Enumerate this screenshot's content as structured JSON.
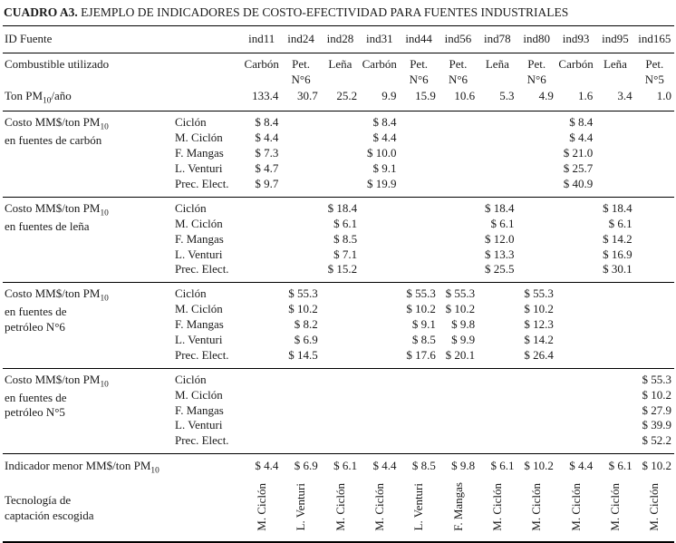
{
  "title": {
    "prefix": "CUADRO A3.",
    "text": "EJEMPLO DE INDICADORES DE COSTO-EFECTIVIDAD PARA FUENTES INDUSTRIALES"
  },
  "table": {
    "id_row_label": "ID Fuente",
    "source_ids": [
      "ind11",
      "ind24",
      "ind28",
      "ind31",
      "ind44",
      "ind56",
      "ind78",
      "ind80",
      "ind93",
      "ind95",
      "ind165"
    ],
    "fuel_row_label": "Combustible utilizado",
    "fuels": [
      [
        "Carbón"
      ],
      [
        "Pet.",
        "N°6"
      ],
      [
        "Leña"
      ],
      [
        "Carbón"
      ],
      [
        "Pet.",
        "N°6"
      ],
      [
        "Pet.",
        "N°6"
      ],
      [
        "Leña"
      ],
      [
        "Pet.",
        "N°6"
      ],
      [
        "Carbón"
      ],
      [
        "Leña"
      ],
      [
        "Pet.",
        "N°5"
      ]
    ],
    "emission_row_label": "Ton PM{10}/año",
    "emissions": [
      "133.4",
      "30.7",
      "25.2",
      "9.9",
      "15.9",
      "10.6",
      "5.3",
      "4.9",
      "1.6",
      "3.4",
      "1.0"
    ],
    "sections": [
      {
        "label_lines": [
          "Costo MM$/ton PM{10}",
          "en fuentes de carbón"
        ],
        "tech_rows": [
          {
            "tech": "Ciclón",
            "values": [
              "$ 8.4",
              "",
              "",
              "$ 8.4",
              "",
              "",
              "",
              "",
              "$ 8.4",
              "",
              ""
            ]
          },
          {
            "tech": "M. Ciclón",
            "values": [
              "$ 4.4",
              "",
              "",
              "$ 4.4",
              "",
              "",
              "",
              "",
              "$ 4.4",
              "",
              ""
            ]
          },
          {
            "tech": "F. Mangas",
            "values": [
              "$ 7.3",
              "",
              "",
              "$ 10.0",
              "",
              "",
              "",
              "",
              "$ 21.0",
              "",
              ""
            ]
          },
          {
            "tech": "L. Venturi",
            "values": [
              "$ 4.7",
              "",
              "",
              "$ 9.1",
              "",
              "",
              "",
              "",
              "$ 25.7",
              "",
              ""
            ]
          },
          {
            "tech": "Prec. Elect.",
            "values": [
              "$ 9.7",
              "",
              "",
              "$ 19.9",
              "",
              "",
              "",
              "",
              "$ 40.9",
              "",
              ""
            ]
          }
        ]
      },
      {
        "label_lines": [
          "Costo MM$/ton PM{10}",
          "en fuentes de leña"
        ],
        "tech_rows": [
          {
            "tech": "Ciclón",
            "values": [
              "",
              "",
              "$ 18.4",
              "",
              "",
              "",
              "$ 18.4",
              "",
              "",
              "$ 18.4",
              ""
            ]
          },
          {
            "tech": "M. Ciclón",
            "values": [
              "",
              "",
              "$ 6.1",
              "",
              "",
              "",
              "$ 6.1",
              "",
              "",
              "$ 6.1",
              ""
            ]
          },
          {
            "tech": "F. Mangas",
            "values": [
              "",
              "",
              "$ 8.5",
              "",
              "",
              "",
              "$ 12.0",
              "",
              "",
              "$ 14.2",
              ""
            ]
          },
          {
            "tech": "L. Venturi",
            "values": [
              "",
              "",
              "$ 7.1",
              "",
              "",
              "",
              "$ 13.3",
              "",
              "",
              "$ 16.9",
              ""
            ]
          },
          {
            "tech": "Prec. Elect.",
            "values": [
              "",
              "",
              "$ 15.2",
              "",
              "",
              "",
              "$ 25.5",
              "",
              "",
              "$ 30.1",
              ""
            ]
          }
        ]
      },
      {
        "label_lines": [
          "Costo MM$/ton PM{10}",
          "en fuentes de",
          "petróleo N°6"
        ],
        "tech_rows": [
          {
            "tech": "Ciclón",
            "values": [
              "",
              "$ 55.3",
              "",
              "",
              "$ 55.3",
              "$ 55.3",
              "",
              "$ 55.3",
              "",
              "",
              ""
            ]
          },
          {
            "tech": "M. Ciclón",
            "values": [
              "",
              "$ 10.2",
              "",
              "",
              "$ 10.2",
              "$ 10.2",
              "",
              "$ 10.2",
              "",
              "",
              ""
            ]
          },
          {
            "tech": "F. Mangas",
            "values": [
              "",
              "$ 8.2",
              "",
              "",
              "$ 9.1",
              "$ 9.8",
              "",
              "$ 12.3",
              "",
              "",
              ""
            ]
          },
          {
            "tech": "L. Venturi",
            "values": [
              "",
              "$ 6.9",
              "",
              "",
              "$ 8.5",
              "$ 9.9",
              "",
              "$ 14.2",
              "",
              "",
              ""
            ]
          },
          {
            "tech": "Prec. Elect.",
            "values": [
              "",
              "$ 14.5",
              "",
              "",
              "$ 17.6",
              "$ 20.1",
              "",
              "$ 26.4",
              "",
              "",
              ""
            ]
          }
        ]
      },
      {
        "label_lines": [
          "Costo MM$/ton PM{10}",
          "en fuentes de",
          "petróleo N°5"
        ],
        "tech_rows": [
          {
            "tech": "Ciclón",
            "values": [
              "",
              "",
              "",
              "",
              "",
              "",
              "",
              "",
              "",
              "",
              "$ 55.3"
            ]
          },
          {
            "tech": "M. Ciclón",
            "values": [
              "",
              "",
              "",
              "",
              "",
              "",
              "",
              "",
              "",
              "",
              "$ 10.2"
            ]
          },
          {
            "tech": "F. Mangas",
            "values": [
              "",
              "",
              "",
              "",
              "",
              "",
              "",
              "",
              "",
              "",
              "$ 27.9"
            ]
          },
          {
            "tech": "L. Venturi",
            "values": [
              "",
              "",
              "",
              "",
              "",
              "",
              "",
              "",
              "",
              "",
              "$ 39.9"
            ]
          },
          {
            "tech": "Prec. Elect.",
            "values": [
              "",
              "",
              "",
              "",
              "",
              "",
              "",
              "",
              "",
              "",
              "$ 52.2"
            ]
          }
        ]
      }
    ],
    "indicator_row_label": "Indicador menor MM$/ton PM{10}",
    "indicator_values": [
      "$ 4.4",
      "$ 6.9",
      "$ 6.1",
      "$ 4.4",
      "$ 8.5",
      "$ 9.8",
      "$ 6.1",
      "$ 10.2",
      "$ 4.4",
      "$ 6.1",
      "$ 10.2"
    ],
    "technology_row_label_lines": [
      "Tecnología de",
      "captación escogida"
    ],
    "technologies": [
      "M. Ciclón",
      "L. Venturi",
      "M. Ciclón",
      "M. Ciclón",
      "L. Venturi",
      "F. Mangas",
      "M. Ciclón",
      "M. Ciclón",
      "M. Ciclón",
      "M. Ciclón",
      "M. Ciclón"
    ]
  }
}
